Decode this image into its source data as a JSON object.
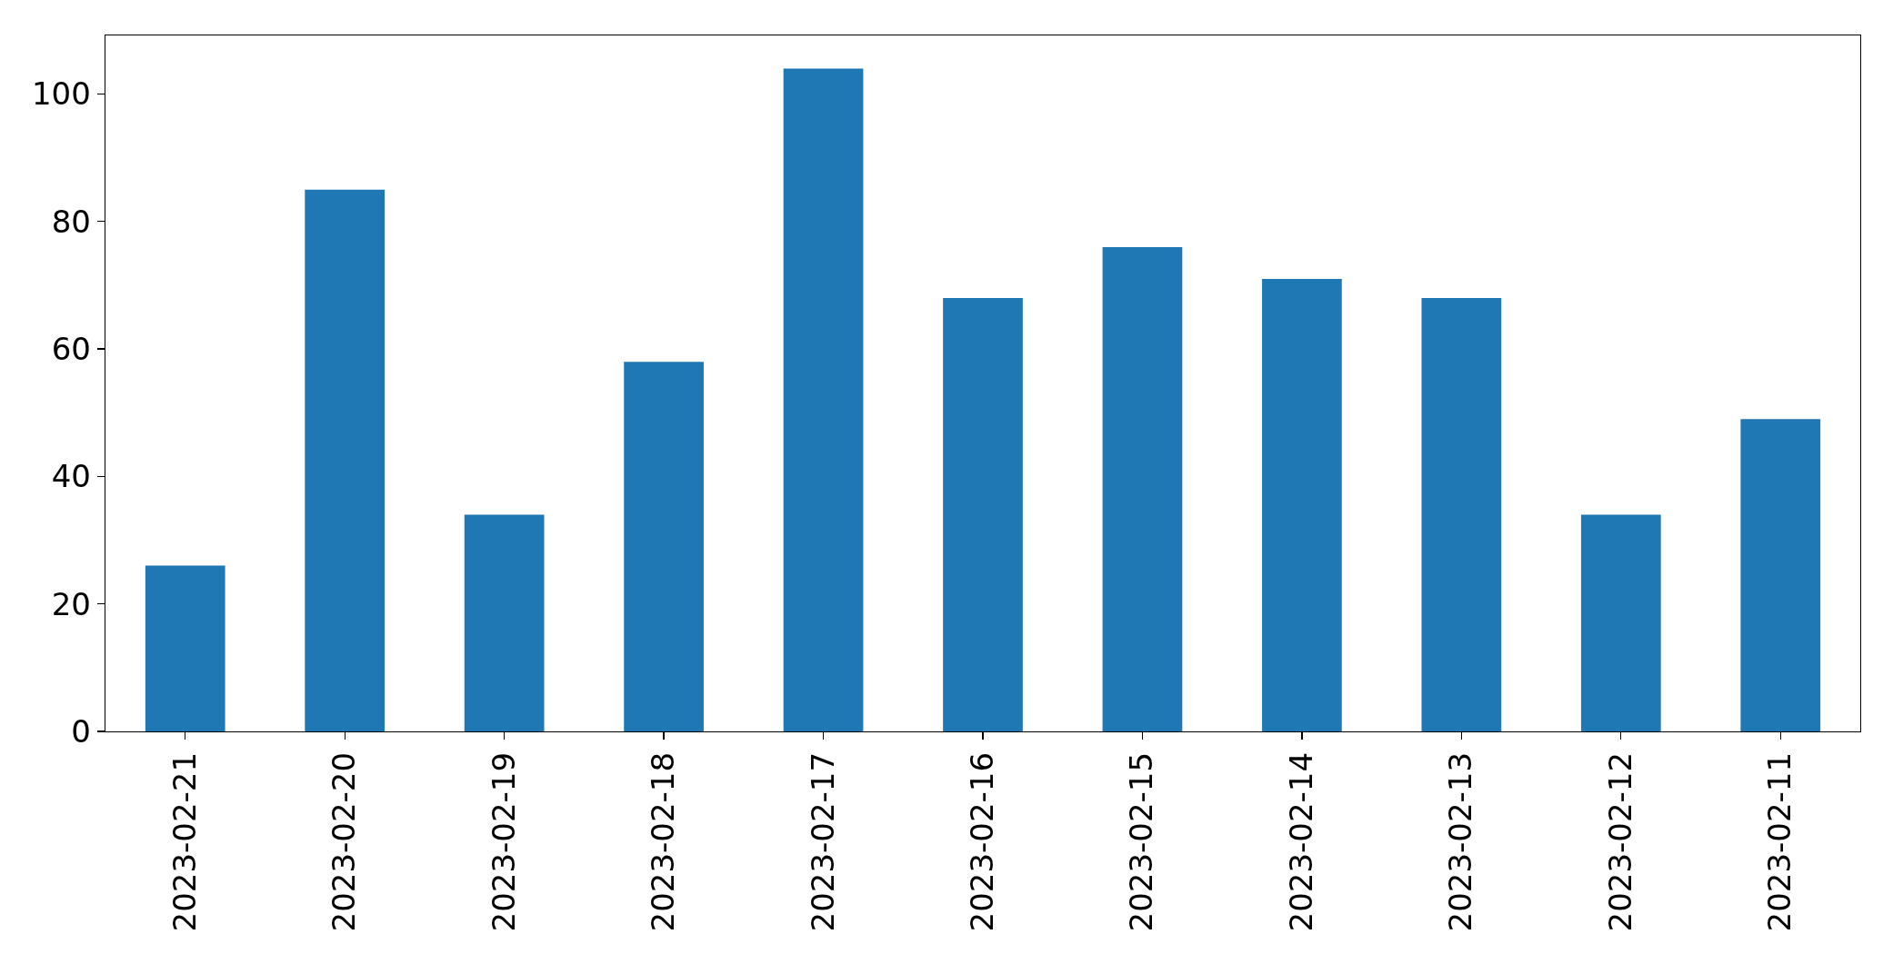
{
  "chart_data": {
    "type": "bar",
    "categories": [
      "2023-02-21",
      "2023-02-20",
      "2023-02-19",
      "2023-02-18",
      "2023-02-17",
      "2023-02-16",
      "2023-02-15",
      "2023-02-14",
      "2023-02-13",
      "2023-02-12",
      "2023-02-11"
    ],
    "values": [
      26,
      85,
      34,
      58,
      104,
      68,
      76,
      71,
      68,
      34,
      49
    ],
    "color": "#1f77b4",
    "ylim": [
      0,
      109.2
    ],
    "yticks": [
      0,
      20,
      40,
      60,
      80,
      100
    ],
    "grid": false
  }
}
